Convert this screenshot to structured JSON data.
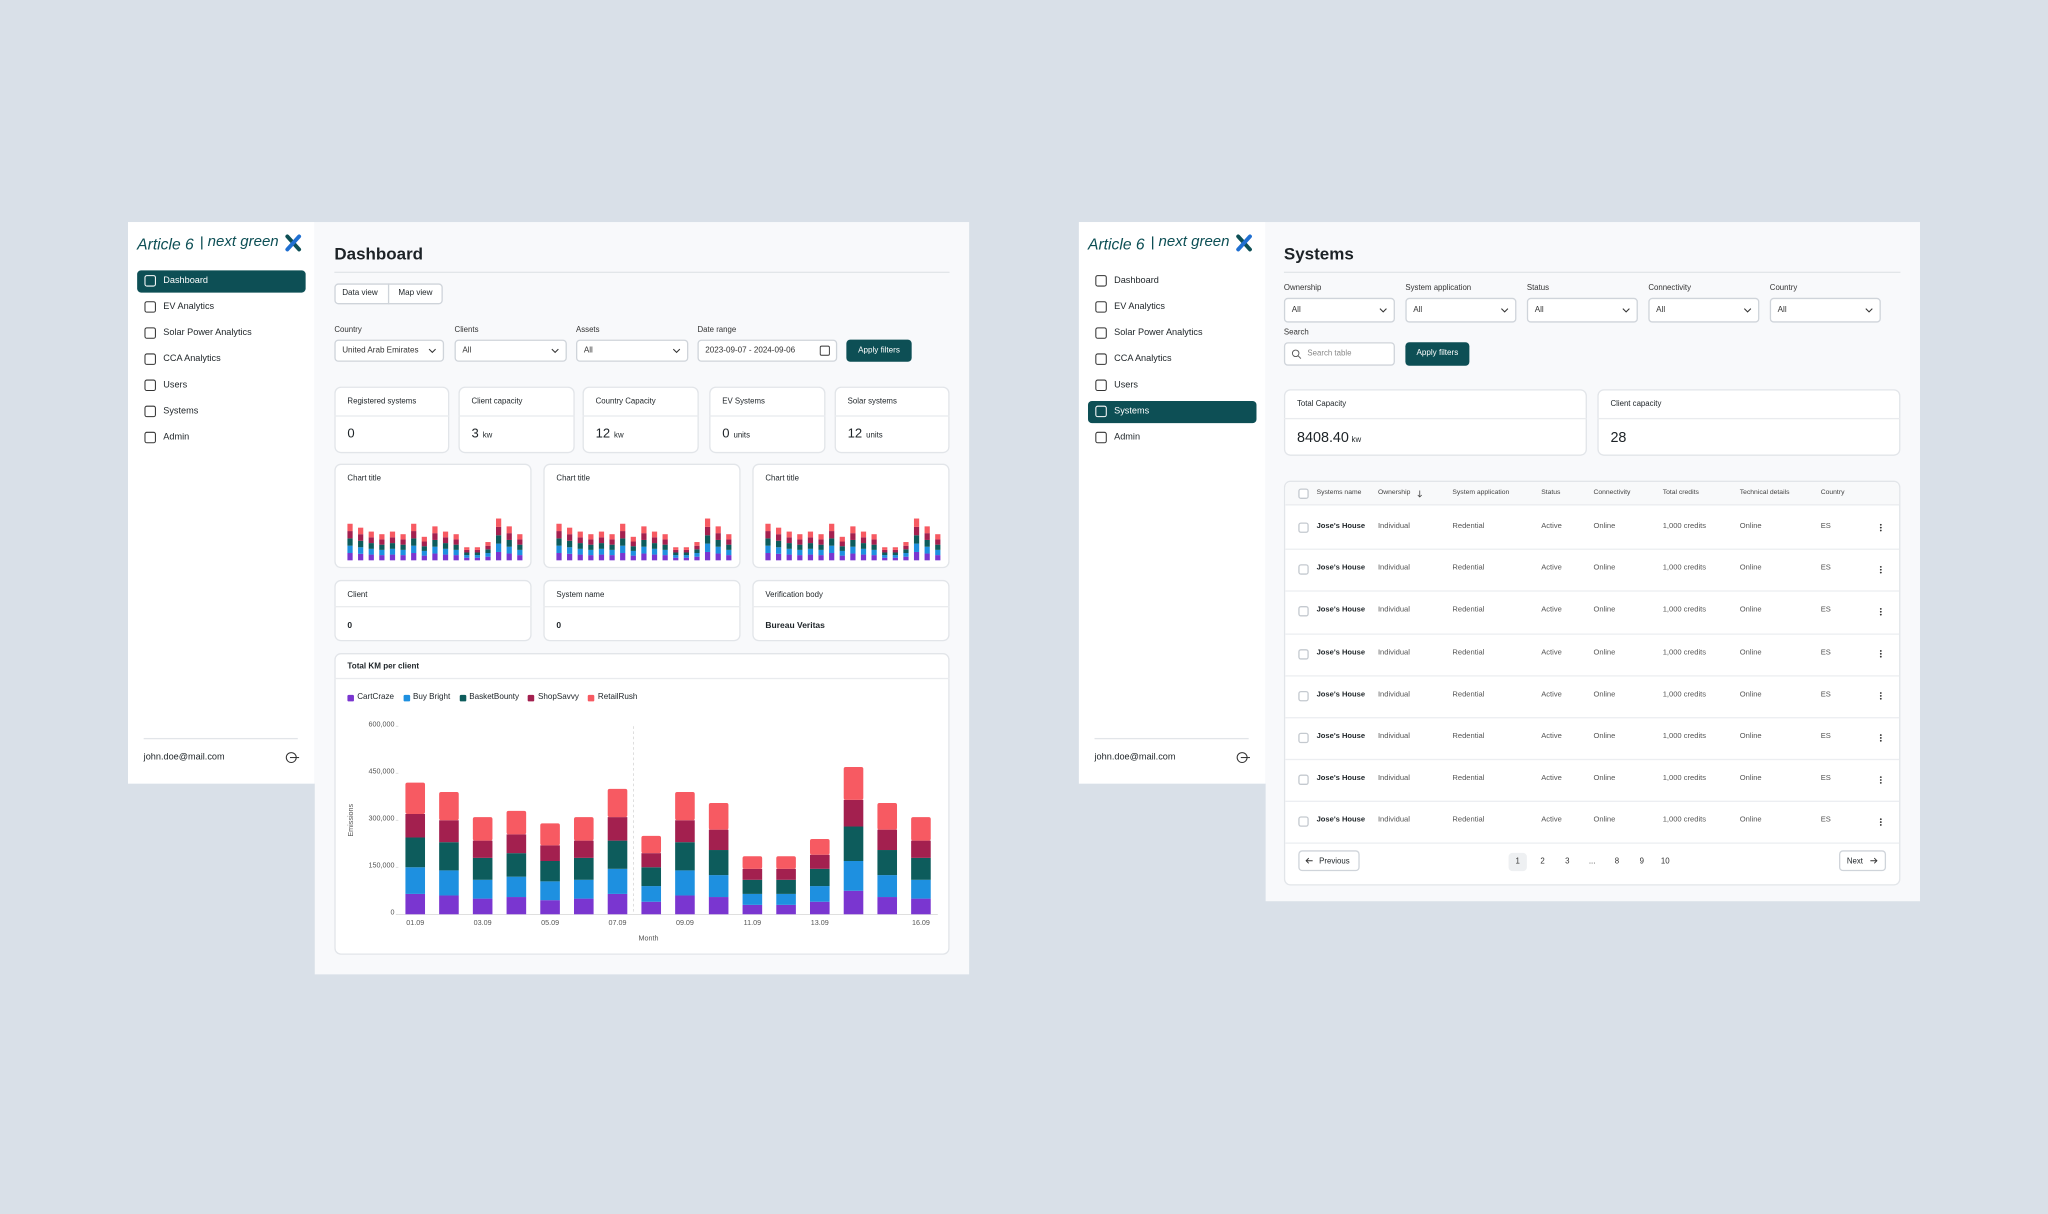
{
  "sidebar": {
    "brand": {
      "name": "Article 6",
      "partner": "next green"
    },
    "nav": [
      "Dashboard",
      "EV Analytics",
      "Solar Power Analytics",
      "CCA Analytics",
      "Users",
      "Systems",
      "Admin"
    ],
    "user": "john.doe@mail.com"
  },
  "dashboard": {
    "active_nav": 0,
    "title": "Dashboard",
    "tabs": [
      "Data view",
      "Map view"
    ],
    "filters": [
      {
        "label": "Country",
        "value": "United Arab Emirates"
      },
      {
        "label": "Clients",
        "value": "All"
      },
      {
        "label": "Assets",
        "value": "All"
      },
      {
        "label": "Date range",
        "value": "2023-09-07 - 2024-09-06"
      }
    ],
    "apply_button": "Apply filters",
    "stats": [
      {
        "label": "Registered systems",
        "value": "0"
      },
      {
        "label": "Client capacity",
        "value": "3",
        "unit": "kw"
      },
      {
        "label": "Country Capacity",
        "value": "12",
        "unit": "kw"
      },
      {
        "label": "EV Systems",
        "value": "0",
        "unit": "units"
      },
      {
        "label": "Solar systems",
        "value": "12",
        "unit": "units"
      }
    ],
    "mini_colors": [
      "#7a36d0",
      "#1e90e0",
      "#0d5c5c",
      "#a3204f",
      "#f75a62"
    ],
    "mini_charts": [
      {
        "title": "Chart title",
        "values": [
          28,
          25,
          22,
          20,
          22,
          20,
          28,
          18,
          26,
          22,
          20,
          10,
          10,
          14,
          32,
          26,
          20
        ]
      },
      {
        "title": "Chart title",
        "values": [
          28,
          25,
          22,
          20,
          22,
          20,
          28,
          18,
          26,
          22,
          20,
          10,
          10,
          14,
          32,
          26,
          20
        ]
      },
      {
        "title": "Chart title",
        "values": [
          28,
          25,
          22,
          20,
          22,
          20,
          28,
          18,
          26,
          22,
          20,
          10,
          10,
          14,
          32,
          26,
          20
        ]
      }
    ],
    "info_cards": [
      {
        "label": "Client",
        "value": "0"
      },
      {
        "label": "System name",
        "value": "0"
      },
      {
        "label": "Verification body",
        "value": "Bureau Veritas"
      }
    ]
  },
  "chart_data": {
    "type": "bar",
    "stacked": true,
    "title": "Total KM per client",
    "categories": [
      "01.09",
      null,
      "03.09",
      null,
      "05.09",
      null,
      "07.09",
      null,
      "09.09",
      null,
      "11.09",
      null,
      "13.09",
      null,
      null,
      "16.09"
    ],
    "series": [
      {
        "name": "CartCraze",
        "color": "#7a36d0",
        "values": [
          65000,
          60000,
          50000,
          55000,
          45000,
          50000,
          65000,
          40000,
          60000,
          55000,
          30000,
          30000,
          40000,
          75000,
          55000,
          50000
        ]
      },
      {
        "name": "Buy Bright",
        "color": "#1e90e0",
        "values": [
          85000,
          80000,
          60000,
          65000,
          60000,
          60000,
          80000,
          50000,
          80000,
          70000,
          35000,
          35000,
          50000,
          95000,
          70000,
          60000
        ]
      },
      {
        "name": "BasketBounty",
        "color": "#0d5c5c",
        "values": [
          95000,
          90000,
          70000,
          75000,
          65000,
          70000,
          90000,
          60000,
          90000,
          80000,
          45000,
          45000,
          55000,
          110000,
          80000,
          70000
        ]
      },
      {
        "name": "ShopSavvy",
        "color": "#a3204f",
        "values": [
          75000,
          70000,
          55000,
          60000,
          50000,
          55000,
          75000,
          45000,
          70000,
          65000,
          35000,
          35000,
          45000,
          85000,
          65000,
          55000
        ]
      },
      {
        "name": "RetailRush",
        "color": "#f75a62",
        "values": [
          100000,
          90000,
          75000,
          75000,
          70000,
          75000,
          90000,
          55000,
          90000,
          85000,
          40000,
          40000,
          50000,
          105000,
          85000,
          75000
        ]
      }
    ],
    "ylim": [
      0,
      600000
    ],
    "yticks": [
      0,
      {
        "value": 150000,
        "label": "150,000"
      },
      {
        "value": 300000,
        "label": "300,000"
      },
      {
        "value": 450000,
        "label": "450,000"
      },
      {
        "value": 600000,
        "label": "600,000"
      }
    ],
    "ylabel": "Emissions",
    "xlabel": "Month",
    "grid": false,
    "legend": "top-left"
  },
  "systems": {
    "active_nav": 5,
    "title": "Systems",
    "filters": [
      {
        "label": "Ownership",
        "value": "All"
      },
      {
        "label": "System application",
        "value": "All"
      },
      {
        "label": "Status",
        "value": "All"
      },
      {
        "label": "Connectivity",
        "value": "All"
      },
      {
        "label": "Country",
        "value": "All"
      }
    ],
    "search": {
      "label": "Search",
      "placeholder": "Search table"
    },
    "apply_button": "Apply filters",
    "stats": [
      {
        "label": "Total Capacity",
        "value": "8408.40",
        "unit": "kw"
      },
      {
        "label": "Client capacity",
        "value": "28"
      }
    ],
    "table": {
      "columns": [
        "Systems name",
        "Ownership",
        "System application",
        "Status",
        "Connectivity",
        "Total credits",
        "Technical details",
        "Country"
      ],
      "rows": [
        [
          "Jose's House",
          "Individual",
          "Redential",
          "Active",
          "Online",
          "1,000 credits",
          "Online",
          "ES"
        ],
        [
          "Jose's House",
          "Individual",
          "Redential",
          "Active",
          "Online",
          "1,000 credits",
          "Online",
          "ES"
        ],
        [
          "Jose's House",
          "Individual",
          "Redential",
          "Active",
          "Online",
          "1,000 credits",
          "Online",
          "ES"
        ],
        [
          "Jose's House",
          "Individual",
          "Redential",
          "Active",
          "Online",
          "1,000 credits",
          "Online",
          "ES"
        ],
        [
          "Jose's House",
          "Individual",
          "Redential",
          "Active",
          "Online",
          "1,000 credits",
          "Online",
          "ES"
        ],
        [
          "Jose's House",
          "Individual",
          "Redential",
          "Active",
          "Online",
          "1,000 credits",
          "Online",
          "ES"
        ],
        [
          "Jose's House",
          "Individual",
          "Redential",
          "Active",
          "Online",
          "1,000 credits",
          "Online",
          "ES"
        ],
        [
          "Jose's House",
          "Individual",
          "Redential",
          "Active",
          "Online",
          "1,000 credits",
          "Online",
          "ES"
        ]
      ]
    },
    "pagination": {
      "previous": "Previous",
      "pages": [
        "1",
        "2",
        "3",
        "...",
        "8",
        "9",
        "10"
      ],
      "current": 0,
      "next": "Next"
    }
  }
}
